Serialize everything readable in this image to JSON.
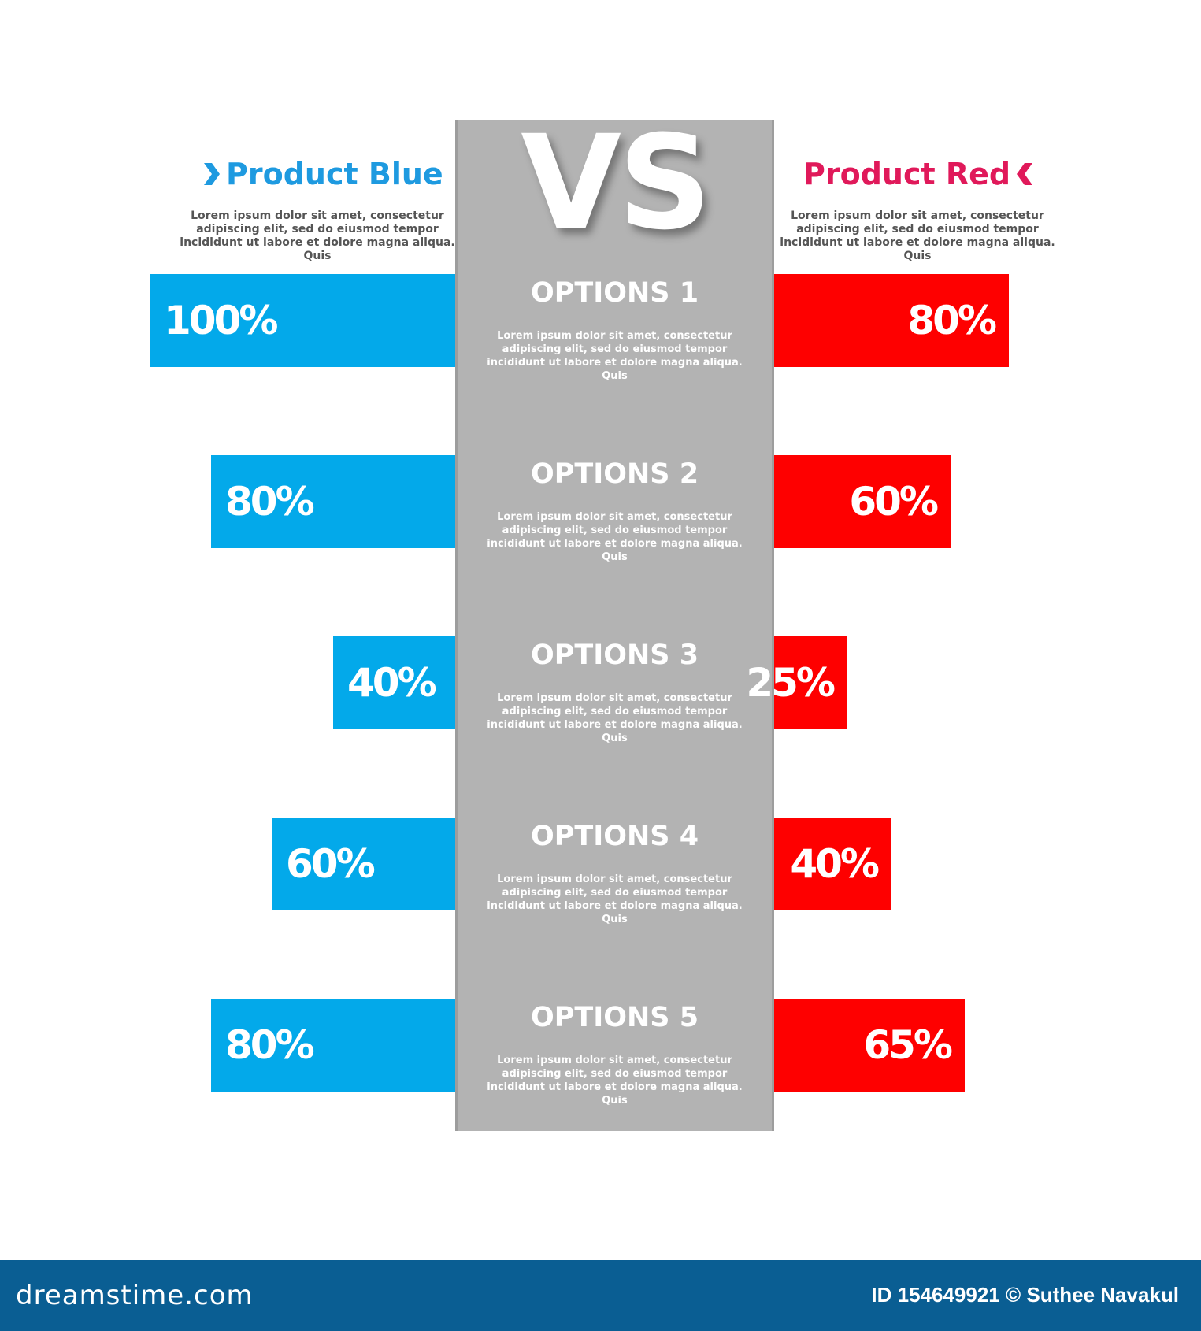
{
  "header": {
    "vs_label": "VS",
    "blue": {
      "title": "Product Blue",
      "icon": "chevron-right-icon",
      "color": "#03a9ea",
      "description": "Lorem ipsum dolor sit amet, consectetur adipiscing elit, sed do eiusmod tempor incididunt ut labore et dolore magna aliqua. Quis"
    },
    "red": {
      "title": "Product Red",
      "icon": "chevron-left-icon",
      "color": "#fe0000",
      "description": "Lorem ipsum dolor sit amet, consectetur adipiscing elit, sed do eiusmod tempor incididunt ut labore et dolore magna aliqua. Quis"
    }
  },
  "chart_data": {
    "type": "bar",
    "categories": [
      "OPTIONS 1",
      "OPTIONS 2",
      "OPTIONS 3",
      "OPTIONS 4",
      "OPTIONS 5"
    ],
    "category_descriptions": [
      "Lorem ipsum dolor sit amet, consectetur adipiscing elit, sed do eiusmod tempor incididunt ut labore et dolore magna aliqua. Quis",
      "Lorem ipsum dolor sit amet, consectetur adipiscing elit, sed do eiusmod tempor incididunt ut labore et dolore magna aliqua. Quis",
      "Lorem ipsum dolor sit amet, consectetur adipiscing elit, sed do eiusmod tempor incididunt ut labore et dolore magna aliqua. Quis",
      "Lorem ipsum dolor sit amet, consectetur adipiscing elit, sed do eiusmod tempor incididunt ut labore et dolore magna aliqua. Quis",
      "Lorem ipsum dolor sit amet, consectetur adipiscing elit, sed do eiusmod tempor incididunt ut labore et dolore magna aliqua. Quis"
    ],
    "series": [
      {
        "name": "Product Blue",
        "values": [
          100,
          80,
          40,
          60,
          80
        ],
        "labels": [
          "100%",
          "80%",
          "40%",
          "60%",
          "80%"
        ]
      },
      {
        "name": "Product Red",
        "values": [
          80,
          60,
          25,
          40,
          65
        ],
        "labels": [
          "80%",
          "60%",
          "25%",
          "40%",
          "65%"
        ]
      }
    ],
    "ylim": [
      0,
      100
    ],
    "layout": "butterfly"
  },
  "footer": {
    "logo": "dreamstime.com",
    "credit": "ID 154649921 © Suthee Navakul"
  }
}
